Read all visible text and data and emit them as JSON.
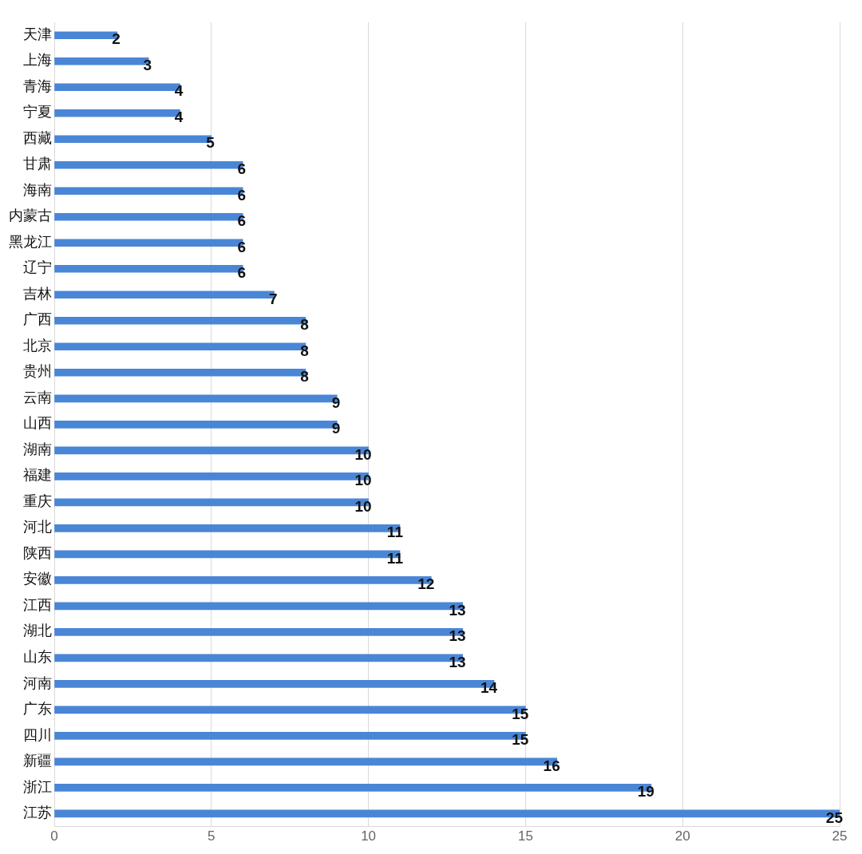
{
  "chart_data": {
    "type": "bar",
    "orientation": "horizontal",
    "categories": [
      "天津",
      "上海",
      "青海",
      "宁夏",
      "西藏",
      "甘肃",
      "海南",
      "内蒙古",
      "黑龙江",
      "辽宁",
      "吉林",
      "广西",
      "北京",
      "贵州",
      "云南",
      "山西",
      "湖南",
      "福建",
      "重庆",
      "河北",
      "陕西",
      "安徽",
      "江西",
      "湖北",
      "山东",
      "河南",
      "广东",
      "四川",
      "新疆",
      "浙江",
      "江苏"
    ],
    "values": [
      2,
      3,
      4,
      4,
      5,
      6,
      6,
      6,
      6,
      6,
      7,
      8,
      8,
      8,
      9,
      9,
      10,
      10,
      10,
      11,
      11,
      12,
      13,
      13,
      13,
      14,
      15,
      15,
      16,
      19,
      25
    ],
    "color": "#4a86d6",
    "xlim": [
      0,
      25
    ],
    "xticks": [
      0,
      5,
      10,
      15,
      20,
      25
    ],
    "grid": "x",
    "data_labels": true,
    "legend": false
  }
}
